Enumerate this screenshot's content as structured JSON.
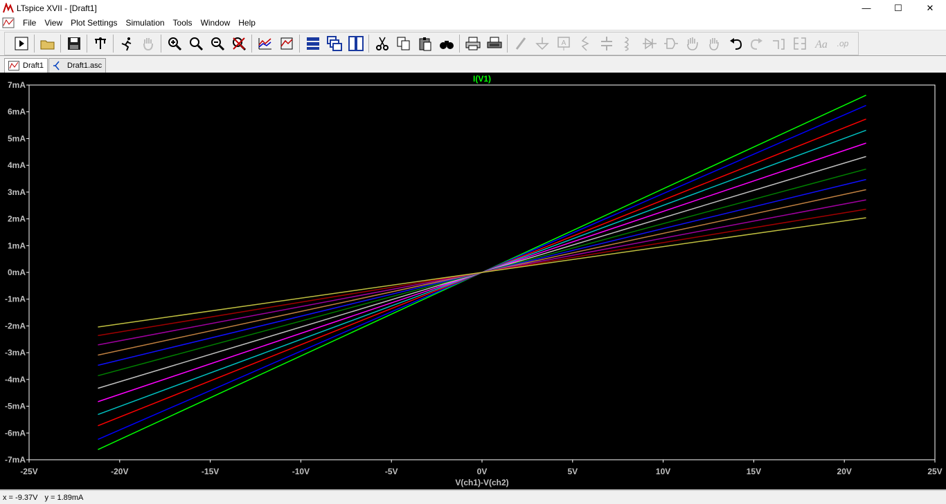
{
  "window": {
    "title": "LTspice XVII - [Draft1]",
    "min": "—",
    "max": "☐",
    "close": "✕"
  },
  "menu": [
    "File",
    "View",
    "Plot Settings",
    "Simulation",
    "Tools",
    "Window",
    "Help"
  ],
  "mdi": {
    "min": "–",
    "restore": "❐",
    "close": "✕"
  },
  "toolbar_icons": [
    "new-schematic-icon",
    "open-icon",
    "save-icon",
    "control-panel-icon",
    "run-icon",
    "halt-icon",
    "zoom-in-icon",
    "zoom-full-icon",
    "zoom-out-icon",
    "zoom-cancel-icon",
    "autorange-icon",
    "mark-data-icon",
    "tile-vertical-icon",
    "cascade-icon",
    "tile-horizontal-icon",
    "cut-icon",
    "copy-icon",
    "paste-icon",
    "find-icon",
    "print-icon",
    "print-setup-icon",
    "draw-wire-icon",
    "ground-icon",
    "label-net-icon",
    "resistor-icon",
    "capacitor-icon",
    "inductor-icon",
    "diode-icon",
    "component-icon",
    "move-icon",
    "drag-icon",
    "undo-icon",
    "redo-icon",
    "rotate-icon",
    "mirror-icon",
    "text-icon",
    "spice-directive-icon"
  ],
  "tabs": [
    {
      "label": "Draft1",
      "icon": "waveform-icon"
    },
    {
      "label": "Draft1.asc",
      "icon": "schematic-icon"
    }
  ],
  "status": {
    "x": "x = -9.37V",
    "y": "y = 1.89mA"
  },
  "colors": {
    "background": "#000000",
    "grid_frame": "#ffffff",
    "trace_title": "#00ff00"
  },
  "chart_data": {
    "type": "line",
    "title": "I(V1)",
    "xlabel": "V(ch1)-V(ch2)",
    "ylabel": "",
    "xlim": [
      -25,
      25
    ],
    "ylim": [
      -7,
      7
    ],
    "x_ticks": [
      "-25V",
      "-20V",
      "-15V",
      "-10V",
      "-5V",
      "0V",
      "5V",
      "10V",
      "15V",
      "20V",
      "25V"
    ],
    "y_ticks": [
      "7mA",
      "6mA",
      "5mA",
      "4mA",
      "3mA",
      "2mA",
      "1mA",
      "0mA",
      "-1mA",
      "-2mA",
      "-3mA",
      "-4mA",
      "-5mA",
      "-6mA",
      "-7mA"
    ],
    "x": [
      -21.2,
      21.2
    ],
    "series": [
      {
        "color": "#00ff00",
        "values": [
          -6.62,
          6.62
        ]
      },
      {
        "color": "#0000ff",
        "values": [
          -6.24,
          6.24
        ]
      },
      {
        "color": "#ff0000",
        "values": [
          -5.73,
          5.73
        ]
      },
      {
        "color": "#00c0c0",
        "values": [
          -5.31,
          5.31
        ]
      },
      {
        "color": "#ff00ff",
        "values": [
          -4.83,
          4.83
        ]
      },
      {
        "color": "#c0c0c0",
        "values": [
          -4.33,
          4.33
        ]
      },
      {
        "color": "#008000",
        "values": [
          -3.86,
          3.86
        ]
      },
      {
        "color": "#1010ff",
        "values": [
          -3.47,
          3.47
        ]
      },
      {
        "color": "#c08040",
        "values": [
          -3.09,
          3.09
        ]
      },
      {
        "color": "#a000a0",
        "values": [
          -2.71,
          2.71
        ]
      },
      {
        "color": "#a00000",
        "values": [
          -2.36,
          2.36
        ]
      },
      {
        "color": "#c0c040",
        "values": [
          -2.04,
          2.04
        ]
      }
    ]
  }
}
